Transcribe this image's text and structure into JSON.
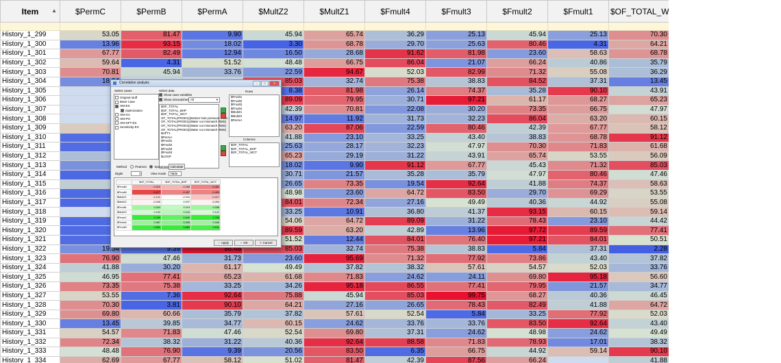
{
  "grid": {
    "columns": [
      "Item",
      "$PermC",
      "$PermB",
      "$PermA",
      "$MultZ2",
      "$MultZ1",
      "$Fmult4",
      "$Fmult3",
      "$Fmult2",
      "$Fmult1",
      "$OF_TOTAL_WCT"
    ],
    "rows": [
      [
        "History_1_299",
        "53.05",
        "81.47",
        "9.90",
        "45.94",
        "65.74",
        "36.29",
        "25.13",
        "45.94",
        "25.13",
        "70.30"
      ],
      [
        "History_1_300",
        "13.96",
        "93.15",
        "18.02",
        "3.30",
        "68.78",
        "29.70",
        "25.63",
        "80.46",
        "4.31",
        "64.21"
      ],
      [
        "History_1_301",
        "67.77",
        "82.49",
        "12.94",
        "16.50",
        "28.68",
        "91.62",
        "81.98",
        "23.60",
        "58.63",
        "68.78"
      ],
      [
        "History_1_302",
        "59.64",
        "4.31",
        "51.52",
        "48.48",
        "66.75",
        "86.04",
        "21.07",
        "66.24",
        "40.86",
        "35.79"
      ],
      [
        "History_1_303",
        "70.81",
        "45.94",
        "33.76",
        "22.59",
        "94.67",
        "52.03",
        "82.99",
        "71.32",
        "55.08",
        "36.29"
      ],
      [
        "History_1_304",
        "18.64",
        "",
        "",
        "85.03",
        "32.74",
        "75.38",
        "38.83",
        "84.52",
        "37.31",
        "13.45"
      ],
      [
        "History_1_305",
        "",
        "",
        "",
        "8.38",
        "81.98",
        "26.14",
        "74.37",
        "35.28",
        "90.10",
        "43.91"
      ],
      [
        "History_1_306",
        "",
        "",
        "",
        "89.09",
        "79.95",
        "30.71",
        "97.21",
        "61.17",
        "68.27",
        "65.23"
      ],
      [
        "History_1_307",
        "",
        "",
        "",
        "42.39",
        "70.81",
        "22.08",
        "30.20",
        "73.35",
        "66.75",
        "47.97"
      ],
      [
        "History_1_308",
        "",
        "",
        "",
        "14.97",
        "11.92",
        "31.73",
        "32.23",
        "86.04",
        "63.20",
        "60.15"
      ],
      [
        "History_1_309",
        "56",
        "",
        "",
        "63.20",
        "87.06",
        "22.59",
        "80.46",
        "42.39",
        "67.77",
        "58.12"
      ],
      [
        "History_1_310",
        "7",
        "",
        "",
        "41.88",
        "23.10",
        "33.25",
        "43.40",
        "38.83",
        "68.78",
        "91.12"
      ],
      [
        "History_1_311",
        "7",
        "",
        "",
        "25.63",
        "28.17",
        "32.23",
        "47.97",
        "70.30",
        "71.83",
        "61.68"
      ],
      [
        "History_1_312",
        "36",
        "",
        "",
        "65.23",
        "29.19",
        "31.22",
        "43.91",
        "65.74",
        "53.55",
        "56.09"
      ],
      [
        "History_1_313",
        "20",
        "",
        "",
        "18.02",
        "9.90",
        "91.12",
        "67.77",
        "45.43",
        "71.32",
        "85.03"
      ],
      [
        "History_1_314",
        "5",
        "",
        "",
        "30.71",
        "21.57",
        "35.28",
        "35.79",
        "47.97",
        "80.46",
        "47.46"
      ],
      [
        "History_1_315",
        "42",
        "",
        "",
        "26.65",
        "73.35",
        "19.54",
        "92.64",
        "41.88",
        "74.37",
        "58.63"
      ],
      [
        "History_1_316",
        "6",
        "",
        "",
        "48.98",
        "23.60",
        "64.72",
        "83.50",
        "29.70",
        "69.29",
        "53.55"
      ],
      [
        "History_1_317",
        "5",
        "",
        "",
        "84.01",
        "72.34",
        "27.16",
        "49.49",
        "40.36",
        "44.92",
        "55.08"
      ],
      [
        "History_1_318",
        "",
        "",
        "",
        "33.25",
        "10.91",
        "36.80",
        "41.37",
        "93.15",
        "60.15",
        "59.14"
      ],
      [
        "History_1_319",
        "6",
        "",
        "",
        "54.06",
        "64.72",
        "89.09",
        "31.22",
        "78.43",
        "23.10",
        "44.42"
      ],
      [
        "History_1_320",
        "6",
        "",
        "",
        "89.59",
        "63.20",
        "42.89",
        "13.96",
        "97.72",
        "89.59",
        "77.41"
      ],
      [
        "History_1_321",
        "7",
        "",
        "",
        "51.52",
        "12.44",
        "84.01",
        "76.40",
        "97.21",
        "84.01",
        "50.51"
      ],
      [
        "History_1_322",
        "19.54",
        "9.39",
        "98.48",
        "85.03",
        "32.74",
        "75.38",
        "38.83",
        "5.84",
        "37.31",
        "2.28"
      ],
      [
        "History_1_323",
        "76.90",
        "47.46",
        "31.73",
        "23.60",
        "95.69",
        "71.32",
        "77.92",
        "73.86",
        "43.40",
        "37.82"
      ],
      [
        "History_1_324",
        "41.88",
        "30.20",
        "61.17",
        "49.49",
        "37.82",
        "38.32",
        "57.61",
        "54.57",
        "52.03",
        "33.76"
      ],
      [
        "History_1_325",
        "46.95",
        "77.41",
        "65.23",
        "61.68",
        "71.83",
        "24.62",
        "24.11",
        "69.80",
        "95.18",
        "56.60"
      ],
      [
        "History_1_326",
        "73.35",
        "75.38",
        "33.25",
        "34.26",
        "95.18",
        "86.55",
        "77.41",
        "79.95",
        "21.57",
        "34.77"
      ],
      [
        "History_1_327",
        "53.55",
        "7.36",
        "92.64",
        "75.88",
        "45.94",
        "85.03",
        "99.75",
        "68.27",
        "40.36",
        "46.45"
      ],
      [
        "History_1_328",
        "70.30",
        "3.81",
        "90.10",
        "64.21",
        "27.16",
        "26.65",
        "78.43",
        "82.49",
        "41.88",
        "64.72"
      ],
      [
        "History_1_329",
        "69.80",
        "60.66",
        "35.79",
        "37.82",
        "57.61",
        "52.54",
        "5.84",
        "33.25",
        "77.92",
        "52.03"
      ],
      [
        "History_1_330",
        "13.45",
        "39.85",
        "34.77",
        "60.15",
        "24.62",
        "33.76",
        "33.76",
        "83.50",
        "92.64",
        "43.40"
      ],
      [
        "History_1_331",
        "54.57",
        "71.83",
        "47.46",
        "52.54",
        "69.80",
        "37.31",
        "24.62",
        "48.98",
        "24.62",
        "49.49"
      ],
      [
        "History_1_332",
        "72.34",
        "38.32",
        "31.22",
        "40.36",
        "92.64",
        "88.58",
        "71.83",
        "78.93",
        "17.01",
        "38.32"
      ],
      [
        "History_1_333",
        "48.48",
        "76.90",
        "9.39",
        "20.56",
        "83.50",
        "6.35",
        "66.75",
        "44.92",
        "59.14",
        "90.10"
      ],
      [
        "History_1_334",
        "62.69",
        "67.77",
        "58.12",
        "51.02",
        "81.47",
        "42.39",
        "87.56",
        "66.24",
        "",
        "41.88"
      ]
    ]
  },
  "dialog": {
    "title": "Correlation analysis",
    "select_cases_label": "Select cases",
    "select_data_label": "Select data",
    "rows_label": "Rows",
    "columns_label": "Columns",
    "case_tree": [
      "Original stuff",
      "Base Case",
      "HM-ES",
      "Optimization",
      "HM-GA",
      "HM-PO",
      "HM-NFT-ES",
      "Sensitivity-ES"
    ],
    "show_case_variables": "Show case variables",
    "show_mismatches": "Show mismatches",
    "filter_value": "All",
    "data_list": [
      "$OF_TOTAL",
      "$OF_TOTAL_BHP",
      "$OF_TOTAL_WCT",
      "OF_TOTAL(PROD1)(Bottom hole pressure mism",
      "OF_TOTAL(PROD1)(Water cut mismatch RMS)",
      "OF_TOTAL(PROD2)(Water cut mismatch RMS)",
      "OF_TOTAL(PROD3)(Water cut mismatch RMS)",
      "$HFT1",
      "$PermA",
      "$Fmult1",
      "$Fmult2",
      "$Fmult3",
      "$Fmult4",
      "$LOGP"
    ],
    "rows_list": [
      "$Fmult1",
      "$Fmult2",
      "$Fmult3",
      "$Fmult4",
      "$MultZ1",
      "$MultZ2",
      "$PermA"
    ],
    "cols_list": [
      "$OF_TOTAL",
      "$OF_TOTAL_BHP",
      "$OF_TOTAL_WCT"
    ],
    "method_label": "Method",
    "pearson_label": "Pearson",
    "spearman_label": "Spearman",
    "calculate_label": "Calculate",
    "digits_label": "Digits",
    "digits_value": "3",
    "view_mode_label": "View mode",
    "view_mode_value": "Table",
    "corr_cols": [
      "$OF_TOTAL",
      "$OF_TOTAL_BHP",
      "$OF_TOTAL_WCT"
    ],
    "corr_rows": [
      [
        "$Fmult4",
        "-0.319",
        "-0.268",
        "-0.461"
      ],
      [
        "$Fmult4",
        "-0.677",
        "-0.457",
        "-0.459"
      ],
      [
        "$MultZ1",
        "-0.101",
        "-0.016",
        "-0.217"
      ],
      [
        "$MultZ2",
        "-0.045",
        "0.037",
        "-0.050"
      ],
      [
        "$Fmult1",
        "0.324",
        "0.215",
        "0.336"
      ],
      [
        "$MultZ2",
        "0.154",
        "0.244",
        "0.142"
      ],
      [
        "$PermC",
        "0.709",
        "0.549",
        "0.756"
      ],
      [
        "$PermA",
        "0.367",
        "0.405",
        "0.346"
      ],
      [
        "$Fmult3",
        "0.669",
        "0.689",
        "0.631"
      ]
    ],
    "apply_label": "Apply",
    "ok_label": "OK",
    "cancel_label": "Cancel"
  },
  "colors": {
    "low": "#3c5ae6",
    "mid": "#d8e4d2",
    "high": "#e8102e",
    "header_bg": "#f2f2f2",
    "filter_row": "#fdf6d8"
  }
}
